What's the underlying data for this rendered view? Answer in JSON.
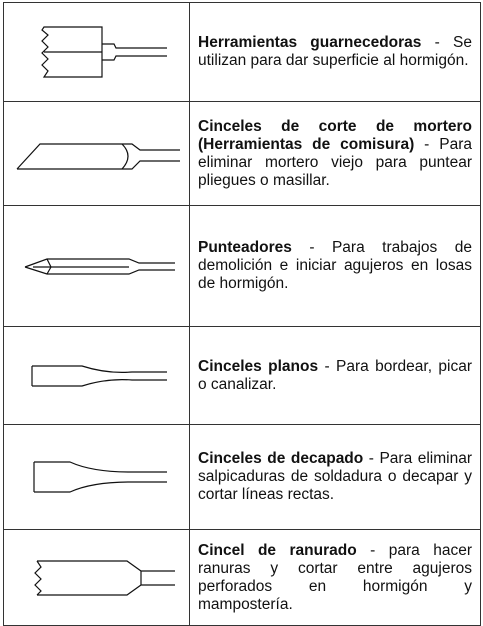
{
  "table": {
    "rows": [
      {
        "name": "Herramientas guarnecedoras",
        "text": " - Se utilizan para dar superficie al hormigón."
      },
      {
        "name": "Cinceles de corte de mortero (Herramientas de comisura)",
        "text": " - Para eliminar mortero viejo para puntear pliegues o masillar."
      },
      {
        "name": "Punteadores",
        "text": " - Para trabajos de demolición e iniciar agujeros en losas de hormigón."
      },
      {
        "name": "Cinceles planos",
        "text": " - Para bordear, picar o canalizar."
      },
      {
        "name": "Cinceles de decapado",
        "text": " - Para eliminar salpicaduras de soldadura o decapar y cortar líneas rectas."
      },
      {
        "name": "Cincel de ranurado",
        "text": " - para hacer ranuras y cortar entre agujeros perforados en hormigón y mampostería."
      }
    ]
  }
}
